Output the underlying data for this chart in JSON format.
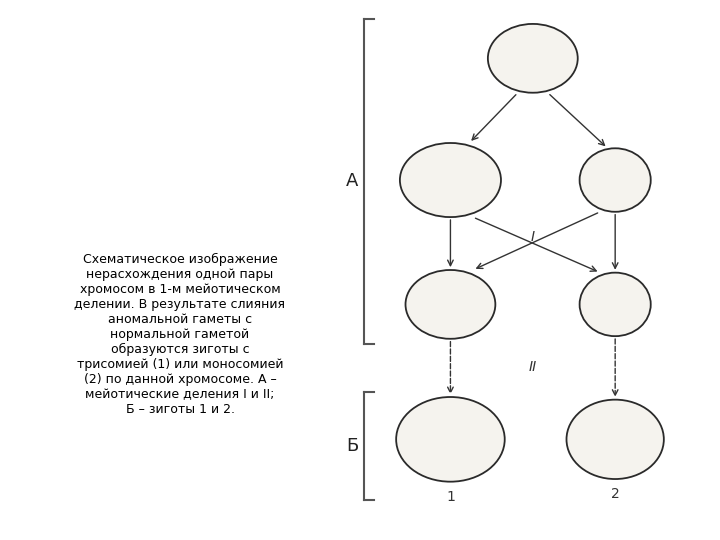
{
  "fig_width": 7.2,
  "fig_height": 5.4,
  "bg_color": "#ffffff",
  "diagram_bg": "#e8e6e0",
  "label_A": "А",
  "label_B": "Б",
  "label_I": "I",
  "label_II": "II",
  "label_1": "1",
  "label_2": "2",
  "caption": "Схематическое изображение\nнерасхождения одной пары\nхромосом в 1-м мейотическом\nделении. В результате слияния\nаномальной гаметы с\nнормальной гаметой\nобразуются зиготы с\nтрисомией (1) или моносомией\n(2) по данной хромосоме. А –\nмейотические деления I и II;\nБ – зиготы 1 и 2.",
  "outline_color": "#2a2a2a",
  "white_chrom_color": "#e8e8e8",
  "white_chrom_edge": "#555555",
  "dark_chrom_color": "#2a2d5a",
  "line_color": "#333333"
}
